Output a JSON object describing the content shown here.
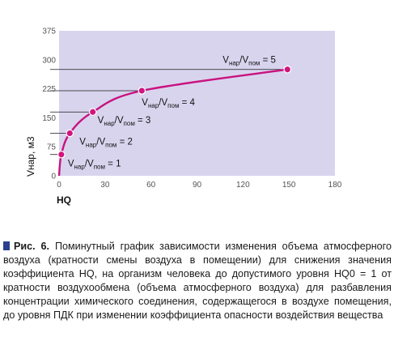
{
  "chart_data": {
    "type": "line",
    "xlabel": "HQ",
    "ylabel": "Vнар, м3",
    "xlim": [
      0,
      180
    ],
    "ylim": [
      0,
      375
    ],
    "xticks": [
      0,
      30,
      60,
      90,
      120,
      150,
      180
    ],
    "yticks": [
      0,
      75,
      150,
      225,
      300,
      375
    ],
    "grid": false,
    "background_color": "#d9d4ee",
    "curve_color": "#c8137f",
    "point_color": "#d0157f",
    "guide_color": "#1a1a1a",
    "series": [
      {
        "x": [
          1.5,
          7,
          22,
          54,
          149
        ],
        "y": [
          55,
          110,
          165,
          220,
          275
        ]
      }
    ],
    "annotations": [
      {
        "x": 1.5,
        "y": 55,
        "main": "V",
        "sub1": "нар",
        "mid": "/V",
        "sub2": "пом",
        "tail": " = 1"
      },
      {
        "x": 7,
        "y": 110,
        "main": "V",
        "sub1": "нар",
        "mid": "/V",
        "sub2": "пом",
        "tail": " = 2"
      },
      {
        "x": 22,
        "y": 165,
        "main": "V",
        "sub1": "нар",
        "mid": "/V",
        "sub2": "пом",
        "tail": " = 3"
      },
      {
        "x": 54,
        "y": 220,
        "main": "V",
        "sub1": "нар",
        "mid": "/V",
        "sub2": "пом",
        "tail": " = 4"
      },
      {
        "x": 149,
        "y": 275,
        "main": "V",
        "sub1": "нар",
        "mid": "/V",
        "sub2": "пом",
        "tail": " = 5"
      }
    ]
  },
  "caption": {
    "label": "Рис. 6.",
    "text": "Поминутный график зависимости изменения объема атмосферного воздуха (кратности смены воздуха в помещении) для снижения значения коэффициента HQ, на организм человека до допустимого уровня HQ0 = 1 от кратности воздухообмена (объема атмосферного воздуха) для разбавления концентрации химического соединения, содержащегося в воздухе помещения, до уровня ПДК при изменении коэффициента опасности воздействия вещества"
  }
}
